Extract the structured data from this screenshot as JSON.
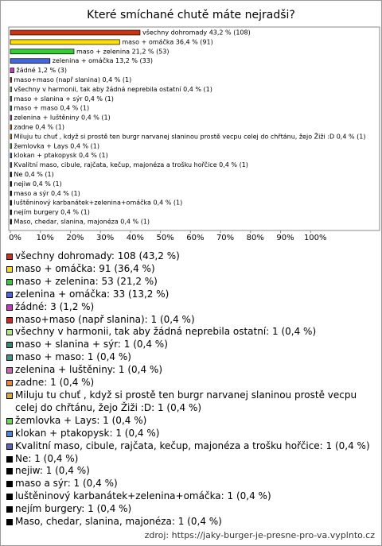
{
  "chart_data": {
    "type": "barh",
    "title": "Které smíchané chutě máte nejradši?",
    "categories": [
      "všechny dohromady",
      "maso + omáčka",
      "maso + zelenina",
      "zelenina + omáčka",
      "žádné",
      "maso+maso (např slanina)",
      "všechny v harmonii, tak aby žádná neprebila ostatní",
      "maso + slanina + sýr",
      "maso + maso",
      "zelenina + luštěniny",
      "zadne",
      "Miluju tu chuť , když si prostě  ten burgr narvanej slaninou prostě vecpu celej do chřtánu, žejo Žiži :D",
      "žemlovka + Lays",
      "klokan + ptakopysk",
      "Kvalitní maso, cibule, rajčata, kečup, majonéza a trošku hořčice",
      "Ne",
      "nejiw",
      "maso a sýr",
      "luštěninový karbanátek+zelenina+omáčka",
      "nejím burgery",
      "Maso, chedar, slanina, majonéza"
    ],
    "values": [
      43.2,
      36.4,
      21.2,
      13.2,
      1.2,
      0.4,
      0.4,
      0.4,
      0.4,
      0.4,
      0.4,
      0.4,
      0.4,
      0.4,
      0.4,
      0.4,
      0.4,
      0.4,
      0.4,
      0.4,
      0.4
    ],
    "value_labels": [
      "všechny dohromady 43,2 % (108)",
      "maso + omáčka 36,4 % (91)",
      "maso + zelenina 21,2 % (53)",
      "zelenina + omáčka 13,2 % (33)",
      "žádné 1,2 % (3)",
      "maso+maso (např slanina) 0,4 % (1)",
      "všechny v harmonii, tak aby žádná neprebila ostatní 0,4 % (1)",
      "maso + slanina + sýr 0,4 % (1)",
      "maso + maso 0,4 % (1)",
      "zelenina + luštěniny 0,4 % (1)",
      "zadne 0,4 % (1)",
      "Miluju tu chuť , když si prostě  ten burgr narvanej slaninou prostě vecpu celej do chřtánu, žejo Žiži :D 0,4 % (1)",
      "žemlovka + Lays 0,4 % (1)",
      "klokan + ptakopysk 0,4 % (1)",
      "Kvalitní maso, cibule, rajčata, kečup, majonéza a trošku hořčice 0,4 % (1)",
      "Ne 0,4 % (1)",
      "nejiw 0,4 % (1)",
      "maso a sýr 0,4 % (1)",
      "luštěninový karbanátek+zelenina+omáčka 0,4 % (1)",
      "nejím burgery 0,4 % (1)",
      "Maso, chedar, slanina, majonéza 0,4 % (1)"
    ],
    "legend_labels": [
      "všechny dohromady: 108 (43,2 %)",
      "maso + omáčka: 91 (36,4 %)",
      "maso + zelenina: 53 (21,2 %)",
      "zelenina + omáčka: 33 (13,2 %)",
      "žádné: 3 (1,2 %)",
      "maso+maso (např slanina): 1 (0,4 %)",
      "všechny v harmonii, tak aby žádná neprebila ostatní: 1 (0,4 %)",
      "maso + slanina + sýr: 1 (0,4 %)",
      "maso + maso: 1 (0,4 %)",
      "zelenina + luštěniny: 1 (0,4 %)",
      "zadne: 1 (0,4 %)",
      "Miluju tu chuť , když si prostě  ten burgr narvanej slaninou prostě vecpu celej do chřtánu, žejo Žiži :D: 1 (0,4 %)",
      "žemlovka + Lays: 1 (0,4 %)",
      "klokan + ptakopysk: 1 (0,4 %)",
      "Kvalitní maso, cibule, rajčata, kečup, majonéza a trošku hořčice: 1 (0,4 %)",
      "Ne: 1 (0,4 %)",
      "nejiw: 1 (0,4 %)",
      "maso a sýr: 1 (0,4 %)",
      "luštěninový karbanátek+zelenina+omáčka: 1 (0,4 %)",
      "nejím burgery: 1 (0,4 %)",
      "Maso, chedar, slanina, majonéza: 1 (0,4 %)"
    ],
    "colors": [
      "#cc3311",
      "#ffdd00",
      "#33cc33",
      "#4466dd",
      "#cc33cc",
      "#dd2222",
      "#aaee77",
      "#338877",
      "#339988",
      "#cc66bb",
      "#ee8822",
      "#ddaa22",
      "#66dd44",
      "#4488dd",
      "#5566bb",
      "#000000",
      "#000000",
      "#000000",
      "#000000",
      "#000000",
      "#000000"
    ],
    "xlim": [
      0,
      123
    ],
    "xticks": [
      {
        "value": 0,
        "label": "0%"
      },
      {
        "value": 10,
        "label": "10%"
      },
      {
        "value": 20,
        "label": "20%"
      },
      {
        "value": 30,
        "label": "30%"
      },
      {
        "value": 40,
        "label": "40%"
      },
      {
        "value": 50,
        "label": "50%"
      },
      {
        "value": 60,
        "label": "60%"
      },
      {
        "value": 70,
        "label": "70%"
      },
      {
        "value": 80,
        "label": "80%"
      },
      {
        "value": 90,
        "label": "90%"
      },
      {
        "value": 100,
        "label": "100%"
      }
    ],
    "source": "zdroj: https://jaky-burger-je-presne-pro-va.vyplnto.cz"
  }
}
